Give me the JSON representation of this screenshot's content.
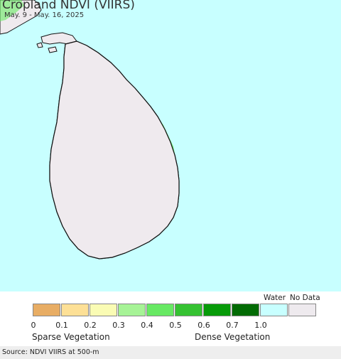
{
  "title": "Cropland NDVI (VIIRS)",
  "date_range": "May. 9 - May. 16, 2025",
  "legend": {
    "ticks": [
      "0",
      "0.1",
      "0.2",
      "0.3",
      "0.4",
      "0.5",
      "0.6",
      "0.7",
      "1.0"
    ],
    "colors": [
      "#e8ad64",
      "#fde096",
      "#fafcb4",
      "#a6f396",
      "#67e963",
      "#35c232",
      "#079b09",
      "#026b04",
      "#c8ffff",
      "#eeeaee"
    ],
    "special": {
      "water": "Water",
      "no_data": "No Data"
    },
    "low_label": "Sparse Vegetation",
    "high_label": "Dense Vegetation"
  },
  "source": "Source: NDVI VIIRS at 500-m",
  "colors": {
    "water": "#c8ffff",
    "land": "#efeaee",
    "dense": "#026b04",
    "medium": "#079b09",
    "light": "#35c232"
  }
}
